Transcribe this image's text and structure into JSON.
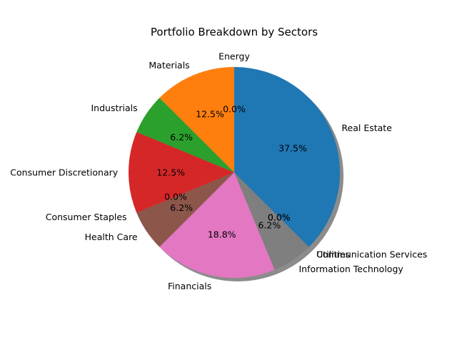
{
  "chart_data": {
    "type": "pie",
    "title": "Portfolio Breakdown by Sectors",
    "shadow": true,
    "start_angle_deg": 90,
    "direction": "counterclockwise",
    "slices": [
      {
        "label": "Energy",
        "value": 0.0,
        "pct_label": "0.0%",
        "color": "#2ca02c"
      },
      {
        "label": "Materials",
        "value": 12.5,
        "pct_label": "12.5%",
        "color": "#ff7f0e"
      },
      {
        "label": "Industrials",
        "value": 6.25,
        "pct_label": "6.2%",
        "color": "#2ca02c"
      },
      {
        "label": "Consumer Discretionary",
        "value": 12.5,
        "pct_label": "12.5%",
        "color": "#d62728"
      },
      {
        "label": "Consumer Staples",
        "value": 0.0,
        "pct_label": "0.0%",
        "color": "#9467bd"
      },
      {
        "label": "Health Care",
        "value": 6.25,
        "pct_label": "6.2%",
        "color": "#8c564b"
      },
      {
        "label": "Financials",
        "value": 18.75,
        "pct_label": "18.8%",
        "color": "#e377c2"
      },
      {
        "label": "Information Technology",
        "value": 6.25,
        "pct_label": "6.2%",
        "color": "#7f7f7f"
      },
      {
        "label": "Utilities",
        "value": 0.0,
        "pct_label": "0.0%",
        "color": "#bcbd22"
      },
      {
        "label": "Communication Services",
        "value": 0.0,
        "pct_label": "0.0%",
        "color": "#17becf"
      },
      {
        "label": "Real Estate",
        "value": 37.5,
        "pct_label": "37.5%",
        "color": "#1f77b4"
      }
    ]
  }
}
